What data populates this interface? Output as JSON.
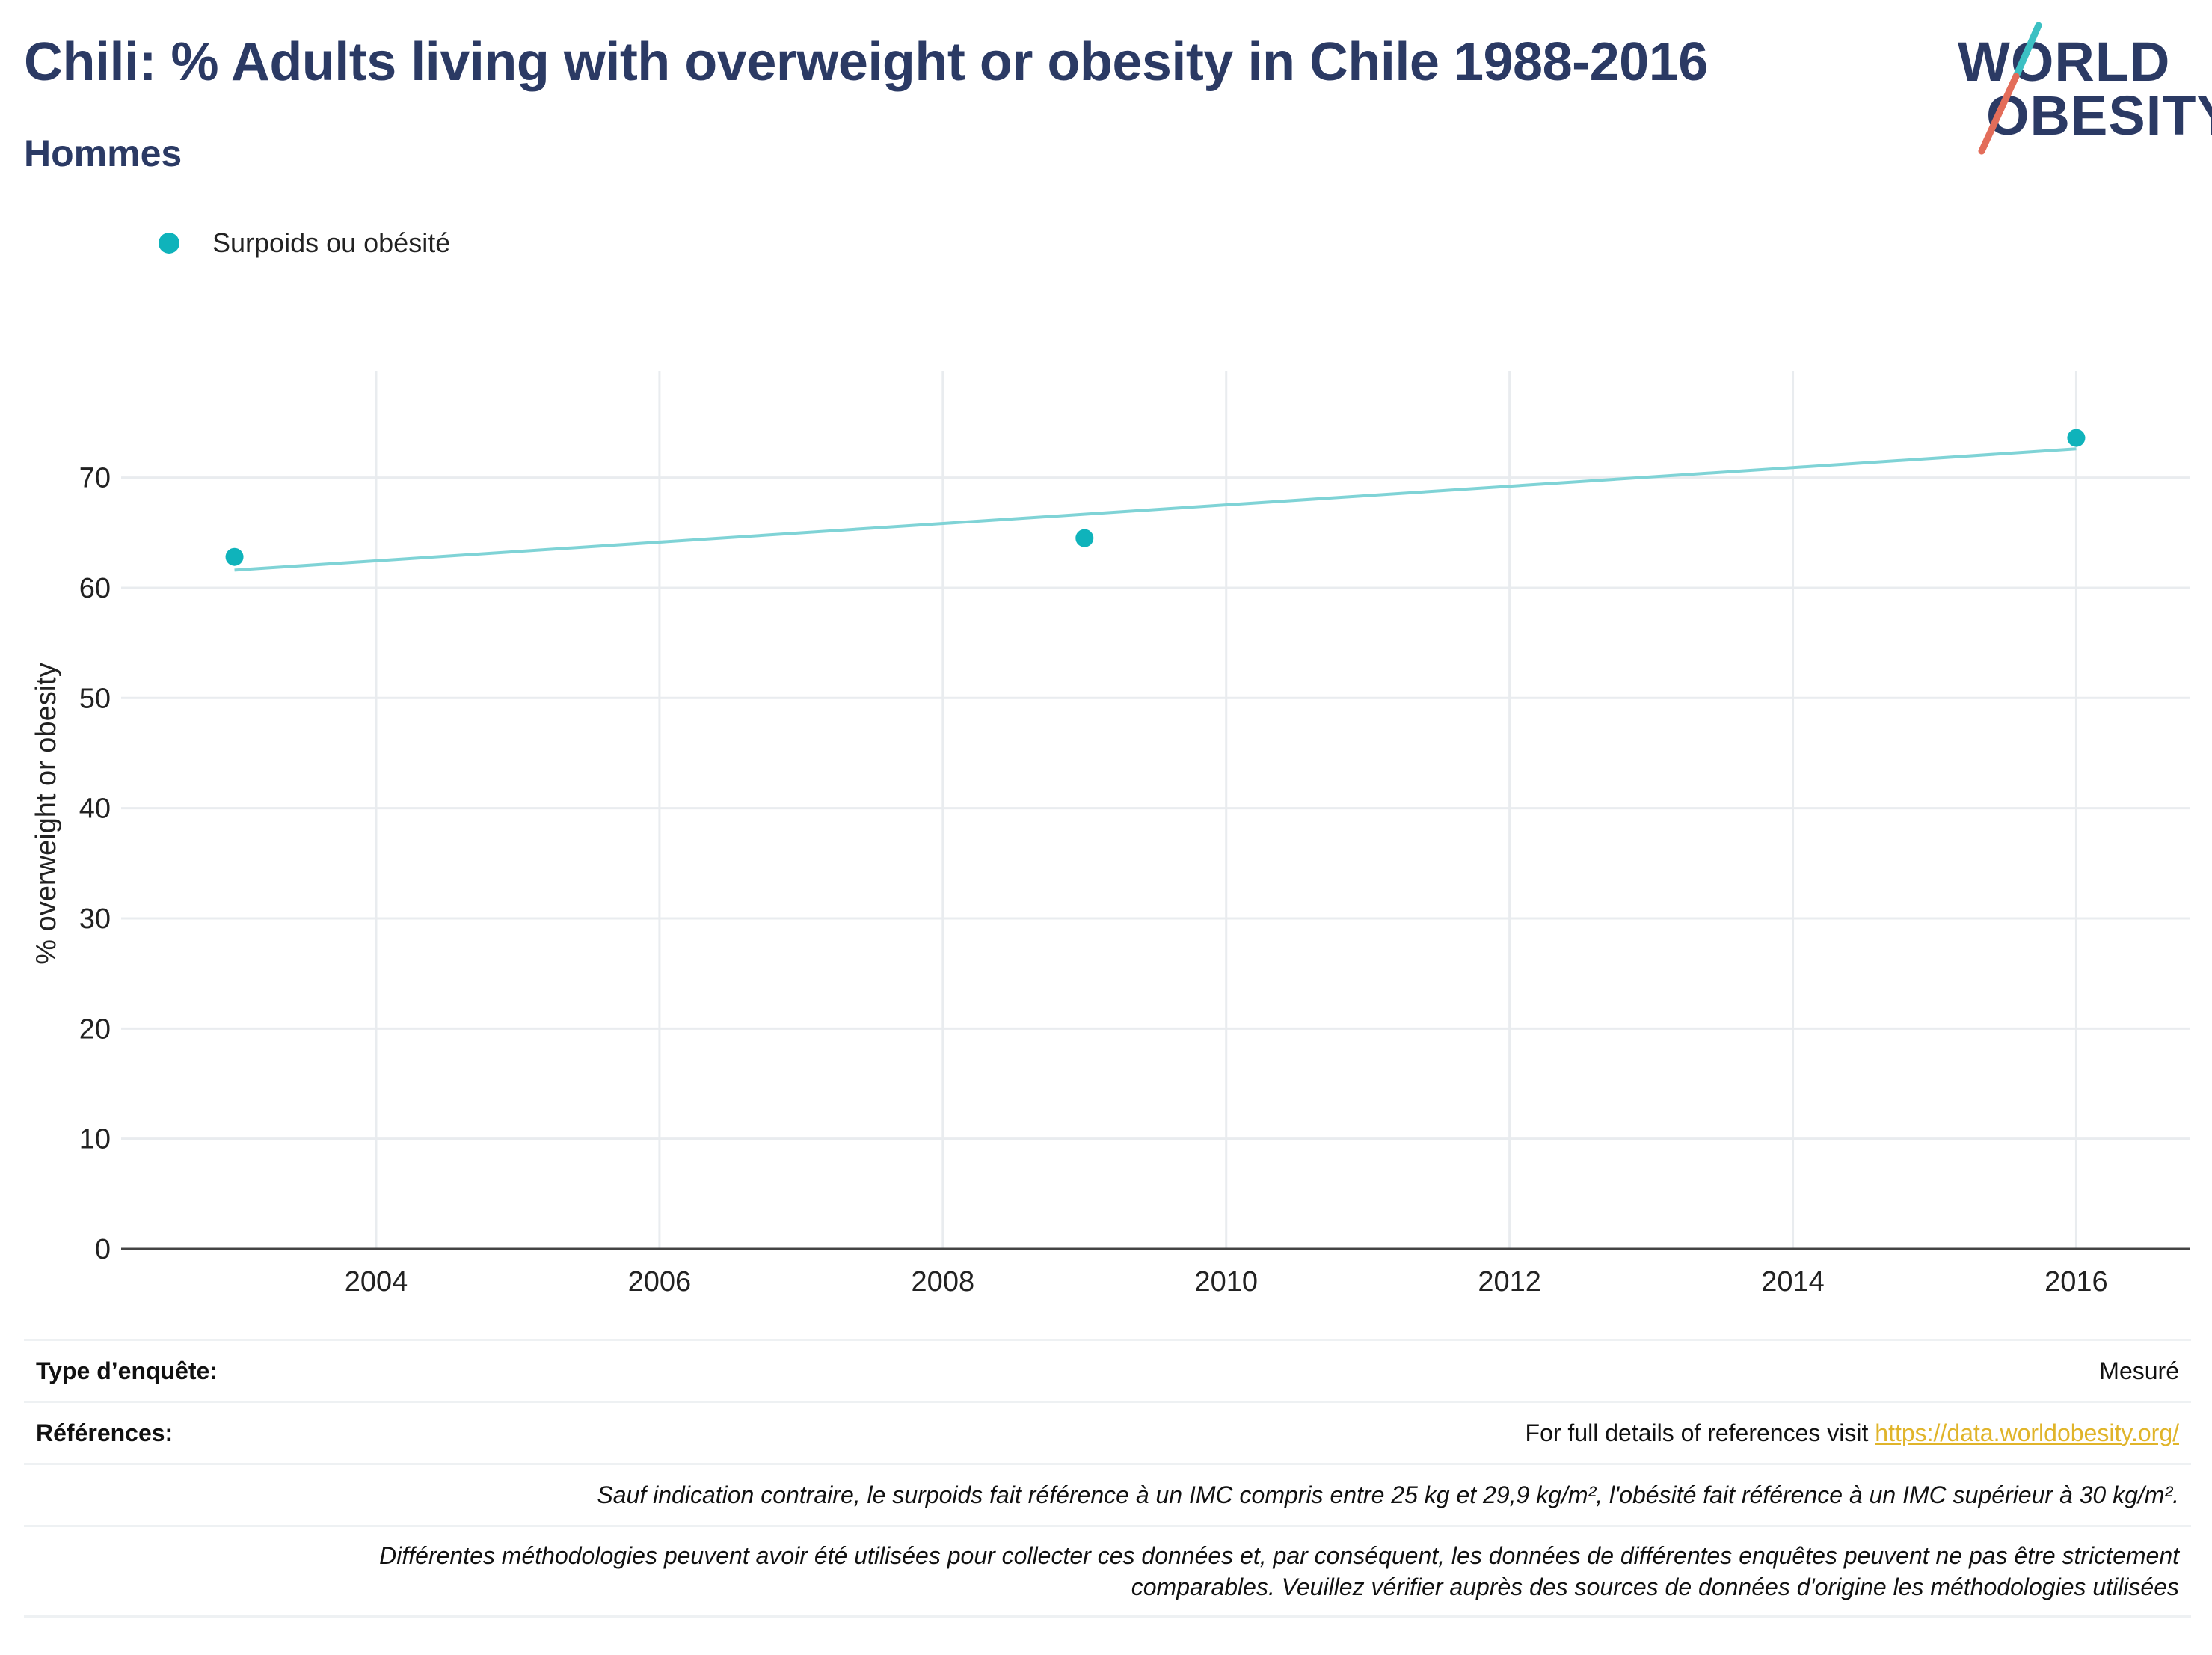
{
  "header": {
    "title": "Chili: % Adults living with overweight or obesity in Chile 1988-2016",
    "subtitle": "Hommes"
  },
  "logo": {
    "line1": "WORLD",
    "line2": "OBESITY",
    "accent_colors": [
      "#3cc0c3",
      "#e36d5a"
    ]
  },
  "legend": {
    "label": "Surpoids ou obésité",
    "color": "#0fb3bb"
  },
  "chart_data": {
    "type": "scatter",
    "title": "Chili: % Adults living with overweight or obesity in Chile 1988-2016",
    "subtitle": "Hommes",
    "xlabel": "",
    "ylabel": "% overweight or obesity",
    "xlim": [
      2002.2,
      2016.8
    ],
    "ylim": [
      0,
      79
    ],
    "x_ticks": [
      2004,
      2006,
      2008,
      2010,
      2012,
      2014,
      2016
    ],
    "y_ticks": [
      0,
      10,
      20,
      30,
      40,
      50,
      60,
      70
    ],
    "grid": true,
    "legend_position": "top-left",
    "series": [
      {
        "name": "Surpoids ou obésité",
        "color": "#0fb3bb",
        "x": [
          2003,
          2009,
          2016
        ],
        "y": [
          62.8,
          64.5,
          73.6
        ]
      }
    ],
    "trendline": {
      "color": "#7fd3d6",
      "x": [
        2003,
        2016
      ],
      "y": [
        61.6,
        72.6
      ]
    }
  },
  "footer": {
    "survey_label": "Type d’enquête:",
    "survey_value": "Mesuré",
    "references_label": "Références:",
    "references_text": "For full details of references visit ",
    "references_link": "https://data.worldobesity.org/",
    "note1": "Sauf indication contraire, le surpoids fait référence à un IMC compris entre 25 kg et 29,9 kg/m², l'obésité fait référence à un IMC supérieur à 30 kg/m².",
    "note2_line1": "Différentes méthodologies peuvent avoir été utilisées pour collecter ces données et, par conséquent, les données de différentes enquêtes peuvent ne pas être strictement",
    "note2_line2": "comparables. Veuillez vérifier auprès des sources de données d'origine les méthodologies utilisées"
  }
}
